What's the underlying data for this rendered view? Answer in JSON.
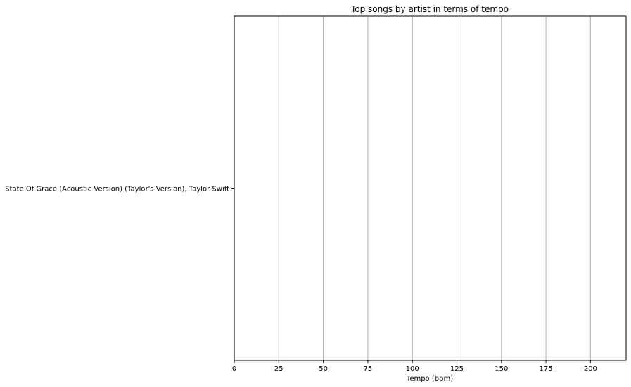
{
  "chart_data": {
    "type": "bar",
    "orientation": "horizontal",
    "title": "Top songs by artist in terms of tempo",
    "xlabel": "Tempo (bpm)",
    "ylabel": "",
    "categories": [
      "State Of Grace (Acoustic Version) (Taylor's Version), Taylor Swift"
    ],
    "values": [
      null
    ],
    "xlim": [
      0,
      220
    ],
    "xticks": [
      0,
      25,
      50,
      75,
      100,
      125,
      150,
      175,
      200
    ],
    "grid": "x",
    "colors": {
      "grid": "#b0b0b0",
      "axes": "#000000",
      "background": "#ffffff"
    }
  }
}
